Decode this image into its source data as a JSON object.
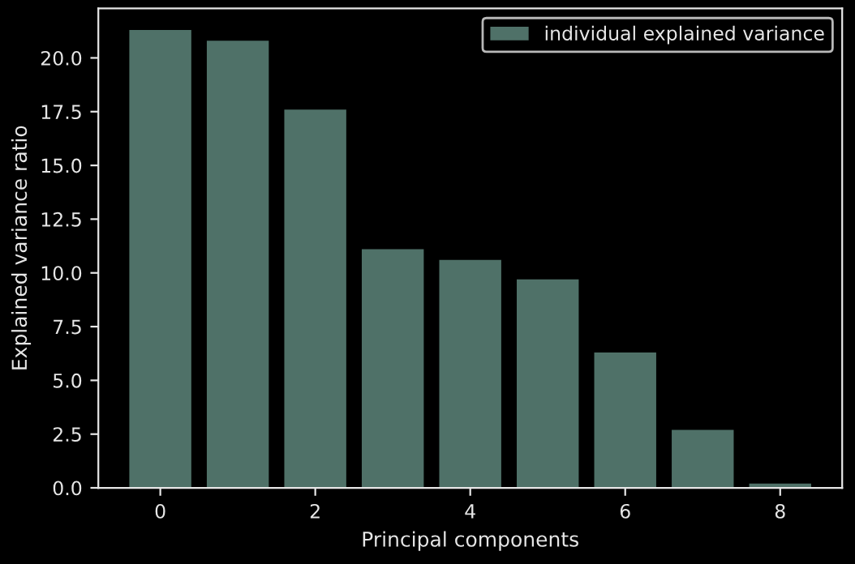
{
  "chart_data": {
    "type": "bar",
    "xlabel": "Principal components",
    "ylabel": "Explained variance ratio",
    "x": [
      0,
      1,
      2,
      3,
      4,
      5,
      6,
      7,
      8
    ],
    "series": [
      {
        "name": "individual explained variance",
        "color": "#4f7168",
        "values": [
          21.3,
          20.8,
          17.6,
          11.1,
          10.6,
          9.7,
          6.3,
          2.7,
          0.2
        ]
      }
    ],
    "xlim": [
      -0.8,
      8.8
    ],
    "xticks": [
      0,
      2,
      4,
      6,
      8
    ],
    "ylim": [
      0,
      22.3
    ],
    "yticks": [
      {
        "value": 0,
        "label": "0.0"
      },
      {
        "value": 2.5,
        "label": "2.5"
      },
      {
        "value": 5,
        "label": "5.0"
      },
      {
        "value": 7.5,
        "label": "7.5"
      },
      {
        "value": 10,
        "label": "10.0"
      },
      {
        "value": 12.5,
        "label": "12.5"
      },
      {
        "value": 15,
        "label": "15.0"
      },
      {
        "value": 17.5,
        "label": "17.5"
      },
      {
        "value": 20,
        "label": "20.0"
      }
    ],
    "legend": "top right",
    "grid": false
  }
}
